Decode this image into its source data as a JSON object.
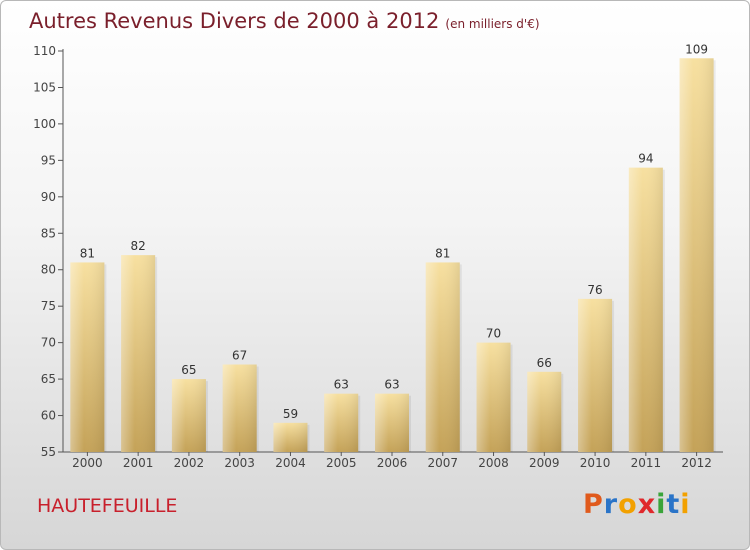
{
  "title": "Autres Revenus Divers de 2000 à 2012",
  "subtitle": "(en milliers d'€)",
  "commune": "HAUTEFEUILLE",
  "logo": {
    "letters": [
      "P",
      "r",
      "o",
      "x",
      "i",
      "t",
      "i"
    ],
    "colors": [
      "#e05a1c",
      "#2a74c8",
      "#f2a100",
      "#e0282c",
      "#3aa43a",
      "#2a74c8",
      "#f2a100"
    ]
  },
  "colors": {
    "title": "#7a1f2b",
    "commune": "#c8202c",
    "bar_light": "#f7e0a0",
    "bar_dark": "#c9a95c"
  },
  "chart_data": {
    "type": "bar",
    "categories": [
      "2000",
      "2001",
      "2002",
      "2003",
      "2004",
      "2005",
      "2006",
      "2007",
      "2008",
      "2009",
      "2010",
      "2011",
      "2012"
    ],
    "values": [
      81,
      82,
      65,
      67,
      59,
      63,
      63,
      81,
      70,
      66,
      76,
      94,
      109
    ],
    "title": "Autres Revenus Divers de 2000 à 2012",
    "subtitle": "(en milliers d'€)",
    "xlabel": "",
    "ylabel": "",
    "ylim": [
      55,
      110
    ],
    "yticks": [
      55,
      60,
      65,
      70,
      75,
      80,
      85,
      90,
      95,
      100,
      105,
      110
    ],
    "grid": false,
    "legend": "none"
  }
}
